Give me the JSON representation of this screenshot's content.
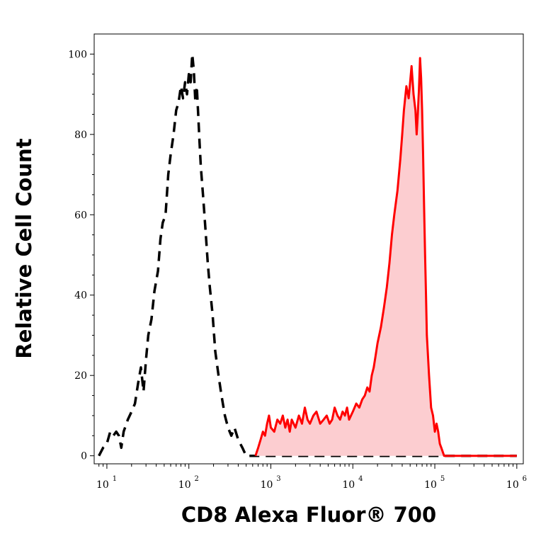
{
  "chart_data": {
    "type": "area",
    "xlabel": "CD8 Alexa Fluor® 700",
    "ylabel": "Relative Cell Count",
    "x_scale": "log",
    "xlim": [
      7,
      1200000
    ],
    "ylim": [
      -2,
      105
    ],
    "x_ticks": [
      {
        "base": "10",
        "exp": "1",
        "value": 10
      },
      {
        "base": "10",
        "exp": "2",
        "value": 100
      },
      {
        "base": "10",
        "exp": "3",
        "value": 1000
      },
      {
        "base": "10",
        "exp": "4",
        "value": 10000
      },
      {
        "base": "10",
        "exp": "5",
        "value": 100000
      },
      {
        "base": "10",
        "exp": "6",
        "value": 1000000
      }
    ],
    "y_ticks": [
      "0",
      "20",
      "40",
      "60",
      "80",
      "100"
    ],
    "series": [
      {
        "style": "dashed",
        "color": "#000000",
        "fill": "none",
        "points": [
          [
            8,
            0
          ],
          [
            9,
            2
          ],
          [
            10,
            3
          ],
          [
            11,
            6
          ],
          [
            12,
            5
          ],
          [
            13,
            6
          ],
          [
            14,
            5
          ],
          [
            15,
            2
          ],
          [
            16,
            6
          ],
          [
            18,
            9
          ],
          [
            20,
            11
          ],
          [
            22,
            13
          ],
          [
            24,
            18
          ],
          [
            26,
            22
          ],
          [
            28,
            16
          ],
          [
            30,
            24
          ],
          [
            32,
            30
          ],
          [
            35,
            34
          ],
          [
            38,
            41
          ],
          [
            42,
            46
          ],
          [
            45,
            54
          ],
          [
            48,
            58
          ],
          [
            52,
            60
          ],
          [
            56,
            70
          ],
          [
            60,
            75
          ],
          [
            65,
            80
          ],
          [
            70,
            86
          ],
          [
            75,
            88
          ],
          [
            80,
            92
          ],
          [
            85,
            89
          ],
          [
            90,
            93
          ],
          [
            95,
            90
          ],
          [
            100,
            95
          ],
          [
            105,
            93
          ],
          [
            110,
            100
          ],
          [
            115,
            96
          ],
          [
            120,
            88
          ],
          [
            125,
            92
          ],
          [
            130,
            85
          ],
          [
            135,
            78
          ],
          [
            140,
            72
          ],
          [
            150,
            64
          ],
          [
            160,
            56
          ],
          [
            170,
            48
          ],
          [
            180,
            42
          ],
          [
            195,
            35
          ],
          [
            210,
            26
          ],
          [
            230,
            20
          ],
          [
            250,
            15
          ],
          [
            275,
            10
          ],
          [
            300,
            7
          ],
          [
            330,
            5
          ],
          [
            360,
            7
          ],
          [
            400,
            4
          ],
          [
            450,
            2
          ],
          [
            500,
            0
          ],
          [
            700,
            0
          ],
          [
            1000,
            0
          ],
          [
            10000,
            0
          ],
          [
            100000,
            0
          ],
          [
            1000000,
            0
          ]
        ]
      },
      {
        "style": "solid",
        "color": "#ff0000",
        "fill": "#fccdd0",
        "points": [
          [
            650,
            0
          ],
          [
            700,
            2
          ],
          [
            750,
            4
          ],
          [
            800,
            6
          ],
          [
            850,
            5
          ],
          [
            900,
            8
          ],
          [
            950,
            10
          ],
          [
            1000,
            7
          ],
          [
            1100,
            6
          ],
          [
            1200,
            9
          ],
          [
            1300,
            8
          ],
          [
            1400,
            10
          ],
          [
            1500,
            7
          ],
          [
            1600,
            9
          ],
          [
            1700,
            6
          ],
          [
            1800,
            9
          ],
          [
            2000,
            7
          ],
          [
            2200,
            10
          ],
          [
            2400,
            8
          ],
          [
            2600,
            12
          ],
          [
            2800,
            9
          ],
          [
            3000,
            8
          ],
          [
            3300,
            10
          ],
          [
            3600,
            11
          ],
          [
            4000,
            8
          ],
          [
            4400,
            9
          ],
          [
            4800,
            10
          ],
          [
            5200,
            8
          ],
          [
            5600,
            9
          ],
          [
            6000,
            12
          ],
          [
            6500,
            10
          ],
          [
            7000,
            9
          ],
          [
            7500,
            11
          ],
          [
            8000,
            10
          ],
          [
            8500,
            12
          ],
          [
            9000,
            9
          ],
          [
            10000,
            11
          ],
          [
            11000,
            13
          ],
          [
            12000,
            12
          ],
          [
            13000,
            14
          ],
          [
            14000,
            15
          ],
          [
            15000,
            17
          ],
          [
            16000,
            16
          ],
          [
            17000,
            20
          ],
          [
            18000,
            22
          ],
          [
            19000,
            25
          ],
          [
            20000,
            28
          ],
          [
            22000,
            32
          ],
          [
            24000,
            37
          ],
          [
            26000,
            42
          ],
          [
            28000,
            48
          ],
          [
            30000,
            55
          ],
          [
            32000,
            60
          ],
          [
            35000,
            66
          ],
          [
            38000,
            74
          ],
          [
            40000,
            80
          ],
          [
            42000,
            86
          ],
          [
            45000,
            92
          ],
          [
            48000,
            89
          ],
          [
            50000,
            93
          ],
          [
            52000,
            97
          ],
          [
            55000,
            90
          ],
          [
            58000,
            86
          ],
          [
            60000,
            80
          ],
          [
            62000,
            85
          ],
          [
            64000,
            91
          ],
          [
            66000,
            99
          ],
          [
            68000,
            94
          ],
          [
            70000,
            86
          ],
          [
            72000,
            75
          ],
          [
            74000,
            62
          ],
          [
            76000,
            50
          ],
          [
            78000,
            40
          ],
          [
            80000,
            30
          ],
          [
            85000,
            20
          ],
          [
            90000,
            12
          ],
          [
            95000,
            10
          ],
          [
            100000,
            6
          ],
          [
            105000,
            8
          ],
          [
            110000,
            6
          ],
          [
            115000,
            3
          ],
          [
            120000,
            2
          ],
          [
            130000,
            0
          ],
          [
            200000,
            0
          ],
          [
            1000000,
            0
          ]
        ]
      }
    ]
  }
}
